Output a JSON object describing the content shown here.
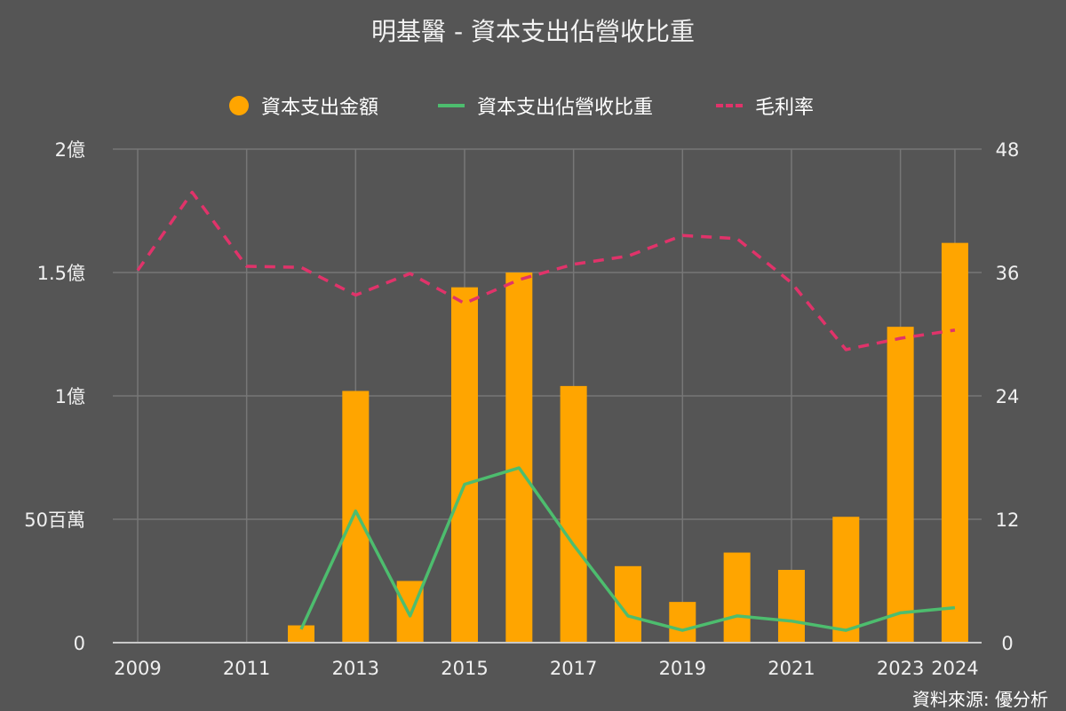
{
  "title": "明基醫 - 資本支出佔營收比重",
  "source": "資料來源: 優分析",
  "colors": {
    "background": "#555555",
    "bars": "#ffa500",
    "ratio_line": "#4dbd6e",
    "margin_line": "#e0336a",
    "grid": "#777777",
    "text": "#f0f0f0"
  },
  "legend": [
    {
      "label": "資本支出金額",
      "marker": "dot",
      "color": "#ffa500"
    },
    {
      "label": "資本支出佔營收比重",
      "marker": "line",
      "color": "#4dbd6e"
    },
    {
      "label": "毛利率",
      "marker": "dashed-line",
      "color": "#e0336a"
    }
  ],
  "chart_data": {
    "type": "bar+line",
    "x_ticks": [
      "2009",
      "2011",
      "2013",
      "2015",
      "2017",
      "2019",
      "2021",
      "2023",
      "2024"
    ],
    "y_left": {
      "min": 0,
      "max": 200000000,
      "ticks": [
        0,
        50000000,
        100000000,
        150000000,
        200000000
      ],
      "tick_labels": [
        "0",
        "50百萬",
        "1億",
        "1.5億",
        "2億"
      ]
    },
    "y_right": {
      "min": 0,
      "max": 48,
      "ticks": [
        0,
        12,
        24,
        36,
        48
      ],
      "tick_labels": [
        "0",
        "12",
        "24",
        "36",
        "48"
      ]
    },
    "grid": true,
    "legend_position": "top",
    "series": [
      {
        "name": "資本支出金額",
        "type": "bar",
        "axis": "left",
        "x": [
          2012,
          2013,
          2014,
          2015,
          2016,
          2017,
          2018,
          2019,
          2020,
          2021,
          2022,
          2023,
          2024
        ],
        "values": [
          7000000,
          102000000,
          25000000,
          144000000,
          150000000,
          104000000,
          31000000,
          16500000,
          36500000,
          29500000,
          51000000,
          128000000,
          162000000
        ]
      },
      {
        "name": "資本支出佔營收比重",
        "type": "line",
        "axis": "right",
        "x": [
          2012,
          2013,
          2014,
          2015,
          2016,
          2017,
          2018,
          2019,
          2020,
          2021,
          2022,
          2023,
          2024
        ],
        "values": [
          1.3,
          12.8,
          2.6,
          15.4,
          17.0,
          9.5,
          2.6,
          1.2,
          2.6,
          2.1,
          1.2,
          2.9,
          3.4
        ]
      },
      {
        "name": "毛利率",
        "type": "dashed-line",
        "axis": "right",
        "x": [
          2009,
          2010,
          2011,
          2012,
          2013,
          2014,
          2015,
          2016,
          2017,
          2018,
          2019,
          2020,
          2021,
          2022,
          2023,
          2024
        ],
        "values": [
          36.2,
          43.8,
          36.6,
          36.5,
          33.8,
          35.9,
          33.0,
          35.3,
          36.8,
          37.6,
          39.6,
          39.3,
          35.0,
          28.5,
          29.6,
          30.4
        ]
      }
    ]
  }
}
